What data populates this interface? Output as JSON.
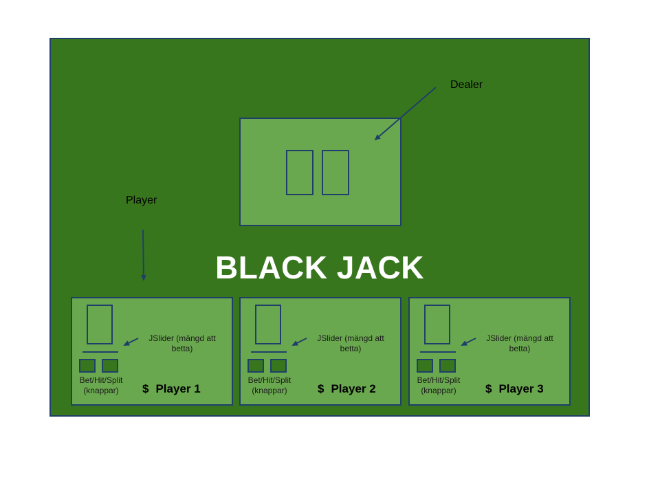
{
  "title": "BLACK JACK",
  "labels": {
    "dealer": "Dealer",
    "player": "Player"
  },
  "player_panels": [
    {
      "slider_line1": "JSlider (mängd att",
      "slider_line2": "betta)",
      "buttons_line1": "Bet/Hit/Split",
      "buttons_line2": "(knappar)",
      "currency": "$",
      "name": "Player 1"
    },
    {
      "slider_line1": "JSlider (mängd att",
      "slider_line2": "betta)",
      "buttons_line1": "Bet/Hit/Split",
      "buttons_line2": "(knappar)",
      "currency": "$",
      "name": "Player 2"
    },
    {
      "slider_line1": "JSlider (mängd att",
      "slider_line2": "betta)",
      "buttons_line1": "Bet/Hit/Split",
      "buttons_line2": "(knappar)",
      "currency": "$",
      "name": "Player 3"
    }
  ],
  "colors": {
    "table": "#38761d",
    "panel": "#6aa84f",
    "outline": "#1f3f6a",
    "title_text": "#ffffff"
  }
}
